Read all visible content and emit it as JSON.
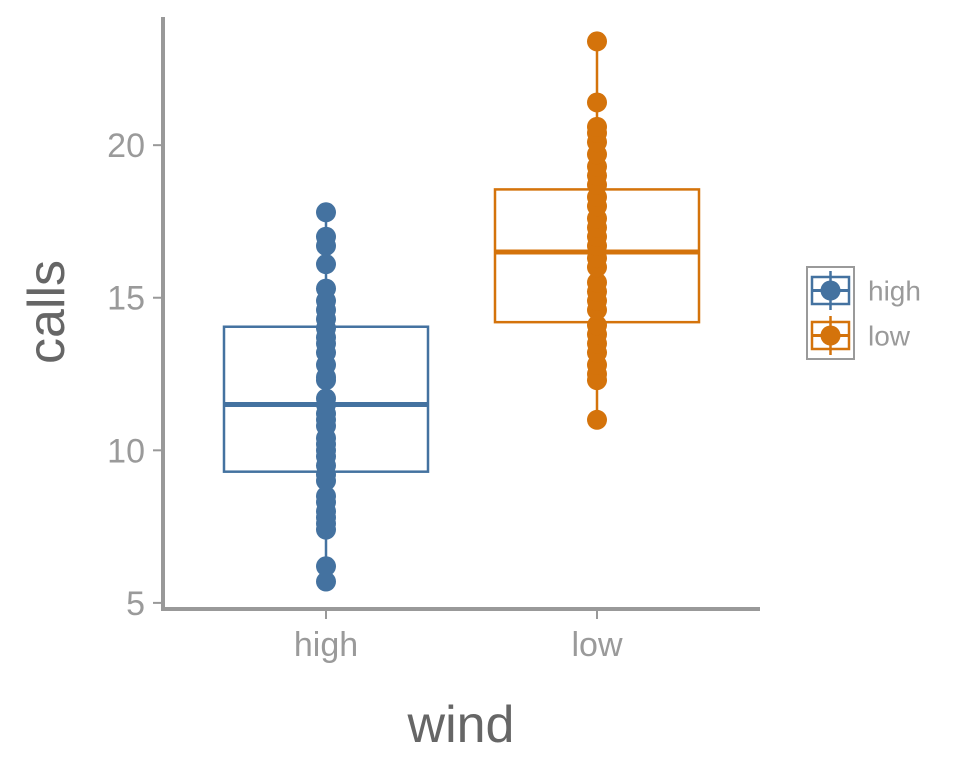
{
  "chart_data": {
    "type": "box",
    "xlabel": "wind",
    "ylabel": "calls",
    "categories": [
      "high",
      "low"
    ],
    "ylim": [
      4.8,
      24.2
    ],
    "yticks": [
      5,
      10,
      15,
      20
    ],
    "grid": false,
    "legend_position": "right",
    "colors": {
      "high": "#4472a0",
      "low": "#d4730b",
      "axis": "#999999",
      "text": "#9a9a9a"
    },
    "series": [
      {
        "name": "high",
        "q1": 9.3,
        "median": 11.5,
        "q3": 14.05,
        "whisker_low": 5.7,
        "whisker_high": 17.8,
        "points": [
          5.7,
          6.2,
          7.4,
          7.6,
          7.8,
          8.0,
          8.3,
          8.5,
          9.0,
          9.2,
          9.5,
          9.8,
          10.0,
          10.2,
          10.4,
          10.8,
          11.0,
          11.2,
          11.5,
          11.7,
          12.3,
          12.4,
          12.8,
          13.2,
          13.5,
          13.7,
          14.0,
          14.3,
          14.6,
          14.9,
          15.3,
          16.1,
          16.7,
          17.0,
          17.8
        ]
      },
      {
        "name": "low",
        "q1": 14.2,
        "median": 16.5,
        "q3": 18.55,
        "whisker_low": 11.0,
        "whisker_high": 23.4,
        "points": [
          11.0,
          12.3,
          12.5,
          12.8,
          13.2,
          13.5,
          13.8,
          14.1,
          14.6,
          14.9,
          15.2,
          15.5,
          16.0,
          16.3,
          16.7,
          17.0,
          17.3,
          17.6,
          18.0,
          18.3,
          18.7,
          19.0,
          19.3,
          19.7,
          20.1,
          20.4,
          20.6,
          21.4,
          23.4
        ]
      }
    ]
  },
  "legend": {
    "items": [
      {
        "label": "high",
        "color": "#4472a0"
      },
      {
        "label": "low",
        "color": "#d4730b"
      }
    ]
  }
}
